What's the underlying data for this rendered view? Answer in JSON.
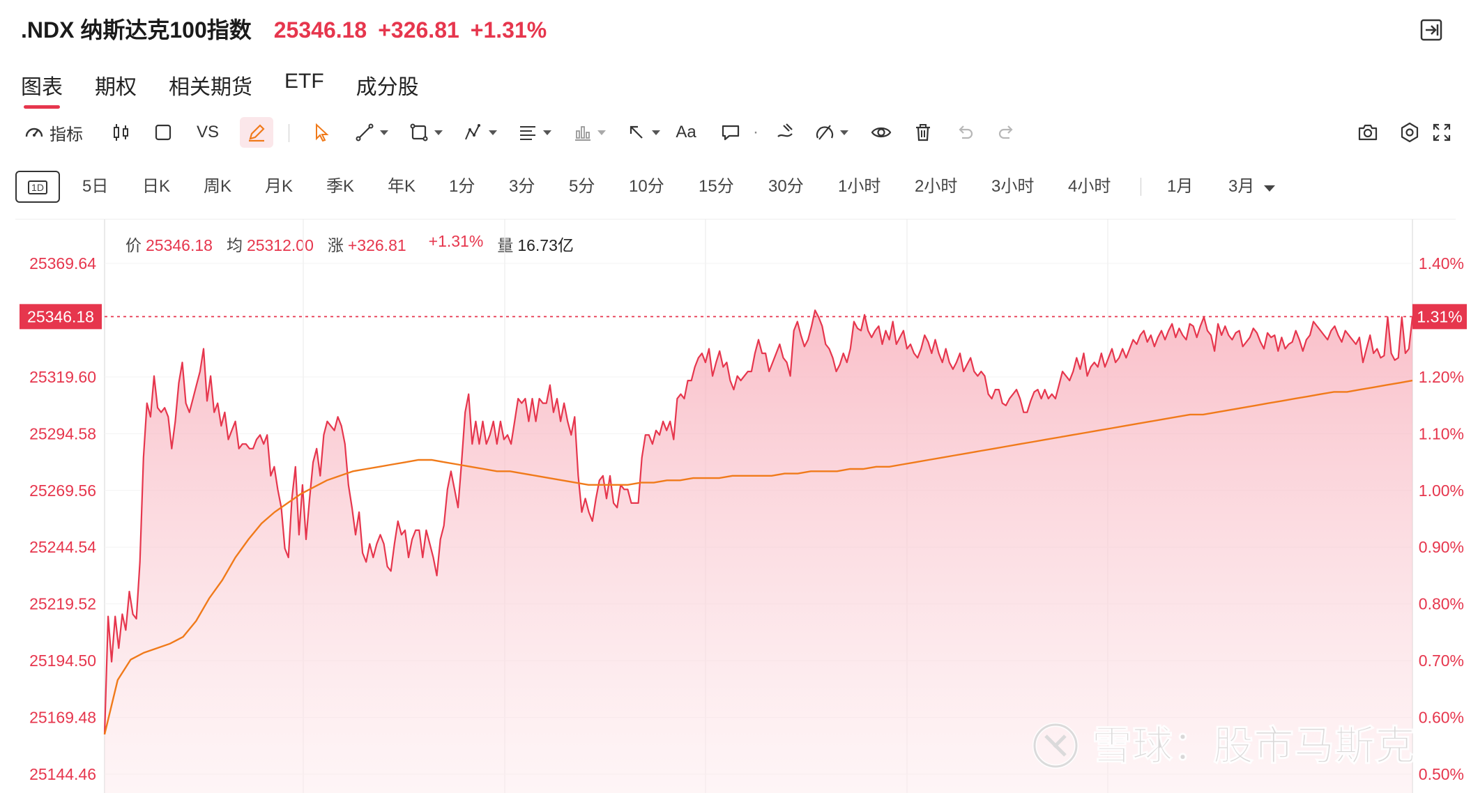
{
  "header": {
    "symbol": ".NDX 纳斯达克100指数",
    "price": "25346.18",
    "change": "+326.81",
    "change_pct": "+1.31%"
  },
  "tabs": [
    {
      "label": "图表",
      "active": true
    },
    {
      "label": "期权"
    },
    {
      "label": "相关期货"
    },
    {
      "label": "ETF"
    },
    {
      "label": "成分股"
    }
  ],
  "toolbar": {
    "indicator_label": "指标",
    "vs_label": "VS",
    "text_label": "Aa"
  },
  "periods": {
    "active_label": "1D",
    "items": [
      "5日",
      "日K",
      "周K",
      "月K",
      "季K",
      "年K",
      "1分",
      "3分",
      "5分",
      "10分",
      "15分",
      "30分",
      "1小时",
      "2小时",
      "3小时",
      "4小时"
    ],
    "extra": [
      "1月",
      "3月"
    ]
  },
  "info": {
    "price_label": "价",
    "price": "25346.18",
    "avg_label": "均",
    "avg": "25312.00",
    "change_label": "涨",
    "change": "+326.81",
    "change_pct": "+1.31%",
    "volume_label": "量",
    "volume": "16.73亿"
  },
  "watermark": "雪球：股市马斯克",
  "colors": {
    "price_line": "#e6364d",
    "avg_line": "#f07a1a",
    "fill": "#fbd3da"
  },
  "chart_data": {
    "type": "area",
    "y_ticks": [
      "25369.64",
      "25346.18",
      "25319.60",
      "25294.58",
      "25269.56",
      "25244.54",
      "25219.52",
      "25194.50",
      "25169.48",
      "25144.46"
    ],
    "y_pct_ticks": [
      "1.40%",
      "1.31%",
      "1.20%",
      "1.10%",
      "1.00%",
      "0.90%",
      "0.80%",
      "0.70%",
      "0.60%",
      "0.50%"
    ],
    "ylim": [
      25144.46,
      25369.64
    ],
    "current_price": 25346.18,
    "current_pct": "1.31%",
    "series": [
      {
        "name": "价",
        "values": [
          25162,
          25214,
          25194,
          25214,
          25200,
          25215,
          25208,
          25225,
          25215,
          25213,
          25238,
          25284,
          25308,
          25302,
          25320,
          25306,
          25304,
          25306,
          25302,
          25288,
          25300,
          25317,
          25326,
          25308,
          25304,
          25310,
          25316,
          25322,
          25332,
          25309,
          25320,
          25304,
          25308,
          25298,
          25304,
          25292,
          25296,
          25300,
          25288,
          25290,
          25290,
          25288,
          25288,
          25292,
          25294,
          25290,
          25294,
          25276,
          25280,
          25270,
          25262,
          25244,
          25240,
          25266,
          25280,
          25250,
          25272,
          25248,
          25266,
          25282,
          25288,
          25276,
          25294,
          25300,
          25298,
          25296,
          25302,
          25298,
          25290,
          25272,
          25262,
          25250,
          25260,
          25242,
          25238,
          25246,
          25240,
          25246,
          25250,
          25246,
          25236,
          25234,
          25246,
          25256,
          25250,
          25252,
          25240,
          25248,
          25252,
          25252,
          25240,
          25252,
          25246,
          25240,
          25232,
          25248,
          25254,
          25270,
          25278,
          25270,
          25262,
          25282,
          25304,
          25312,
          25290,
          25300,
          25290,
          25300,
          25290,
          25294,
          25300,
          25290,
          25300,
          25292,
          25294,
          25290,
          25300,
          25310,
          25308,
          25310,
          25300,
          25310,
          25300,
          25310,
          25308,
          25308,
          25316,
          25304,
          25310,
          25300,
          25308,
          25300,
          25294,
          25302,
          25276,
          25260,
          25266,
          25260,
          25256,
          25266,
          25274,
          25276,
          25266,
          25276,
          25264,
          25262,
          25272,
          25270,
          25270,
          25264,
          25264,
          25264,
          25284,
          25294,
          25294,
          25290,
          25296,
          25294,
          25300,
          25296,
          25300,
          25292,
          25310,
          25312,
          25310,
          25318,
          25318,
          25324,
          25328,
          25330,
          25326,
          25332,
          25320,
          25326,
          25331,
          25324,
          25326,
          25318,
          25314,
          25320,
          25318,
          25320,
          25322,
          25322,
          25330,
          25336,
          25330,
          25330,
          25322,
          25326,
          25330,
          25334,
          25328,
          25326,
          25320,
          25340,
          25344,
          25338,
          25333,
          25336,
          25342,
          25349,
          25346,
          25342,
          25334,
          25332,
          25328,
          25322,
          25325,
          25330,
          25326,
          25332,
          25344,
          25341,
          25340,
          25347,
          25340,
          25337,
          25340,
          25342,
          25334,
          25340,
          25336,
          25344,
          25334,
          25337,
          25340,
          25332,
          25334,
          25330,
          25328,
          25332,
          25338,
          25335,
          25330,
          25336,
          25330,
          25326,
          25332,
          25326,
          25323,
          25326,
          25330,
          25322,
          25325,
          25328,
          25322,
          25320,
          25322,
          25320,
          25312,
          25310,
          25314,
          25314,
          25308,
          25307,
          25310,
          25312,
          25314,
          25310,
          25304,
          25304,
          25309,
          25313,
          25314,
          25310,
          25314,
          25310,
          25312,
          25310,
          25316,
          25322,
          25320,
          25318,
          25322,
          25328,
          25323,
          25330,
          25320,
          25324,
          25326,
          25324,
          25330,
          25324,
          25328,
          25332,
          25326,
          25328,
          25332,
          25328,
          25332,
          25336,
          25334,
          25338,
          25340,
          25335,
          25338,
          25333,
          25337,
          25340,
          25336,
          25340,
          25343,
          25337,
          25341,
          25338,
          25336,
          25343,
          25342,
          25337,
          25342,
          25346,
          25340,
          25338,
          25331,
          25343,
          25338,
          25342,
          25338,
          25336,
          25339,
          25340,
          25333,
          25335,
          25337,
          25341,
          25339,
          25335,
          25332,
          25339,
          25337,
          25338,
          25331,
          25337,
          25332,
          25334,
          25335,
          25340,
          25336,
          25331,
          25336,
          25338,
          25344,
          25342,
          25340,
          25338,
          25336,
          25340,
          25342,
          25338,
          25335,
          25340,
          25338,
          25336,
          25334,
          25337,
          25326,
          25332,
          25338,
          25330,
          25332,
          25328,
          25329,
          25346,
          25330,
          25327,
          25328,
          25346,
          25330,
          25332,
          25346
        ]
      },
      {
        "name": "均",
        "values": [
          25162,
          25186,
          25195,
          25198,
          25200,
          25202,
          25205,
          25212,
          25222,
          25230,
          25240,
          25248,
          25255,
          25260,
          25264,
          25268,
          25271,
          25274,
          25276,
          25278,
          25279,
          25280,
          25281,
          25282,
          25283,
          25283,
          25282,
          25281,
          25280,
          25279,
          25278,
          25278,
          25277,
          25276,
          25275,
          25274,
          25273,
          25272,
          25272,
          25272,
          25272,
          25273,
          25273,
          25274,
          25274,
          25275,
          25275,
          25275,
          25276,
          25276,
          25276,
          25276,
          25277,
          25277,
          25278,
          25278,
          25278,
          25279,
          25279,
          25280,
          25280,
          25281,
          25282,
          25283,
          25284,
          25285,
          25286,
          25287,
          25288,
          25289,
          25290,
          25291,
          25292,
          25293,
          25294,
          25295,
          25296,
          25297,
          25298,
          25299,
          25300,
          25301,
          25302,
          25303,
          25303,
          25304,
          25305,
          25306,
          25307,
          25308,
          25309,
          25310,
          25311,
          25312,
          25313,
          25313,
          25314,
          25315,
          25316,
          25317,
          25318
        ]
      }
    ]
  }
}
